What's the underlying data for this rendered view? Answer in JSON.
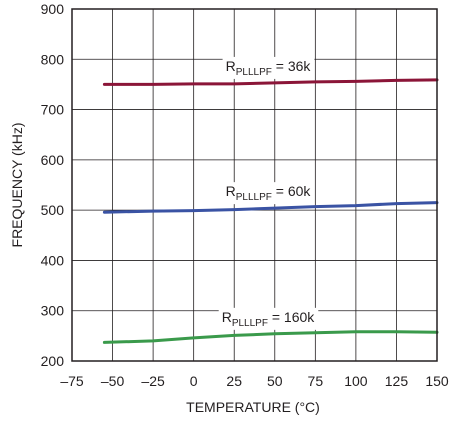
{
  "chart_data": {
    "type": "line",
    "title": "",
    "xlabel": "TEMPERATURE (°C)",
    "ylabel": "FREQUENCY (kHz)",
    "xlim": [
      -75,
      150
    ],
    "ylim": [
      200,
      900
    ],
    "x_ticks": [
      -75,
      -50,
      -25,
      0,
      25,
      50,
      75,
      100,
      125,
      150
    ],
    "y_ticks": [
      200,
      300,
      400,
      500,
      600,
      700,
      800,
      900
    ],
    "x_tick_labels": [
      "–75",
      "–50",
      "–25",
      "0",
      "25",
      "50",
      "75",
      "100",
      "125",
      "150"
    ],
    "y_tick_labels": [
      "200",
      "300",
      "400",
      "500",
      "600",
      "700",
      "800",
      "900"
    ],
    "grid": true,
    "series": [
      {
        "name": "R_PLLLPF = 36k",
        "label_main": "R",
        "label_sub": "PLLLPF",
        "label_rest": " = 36k",
        "color": "#8b1538",
        "x": [
          -55,
          -25,
          0,
          25,
          50,
          75,
          100,
          125,
          150
        ],
        "y": [
          750,
          750,
          751,
          751,
          753,
          755,
          756,
          758,
          759
        ]
      },
      {
        "name": "R_PLLLPF = 60k",
        "label_main": "R",
        "label_sub": "PLLLPF",
        "label_rest": " = 60k",
        "color": "#3a53a4",
        "x": [
          -55,
          -25,
          0,
          25,
          50,
          75,
          100,
          125,
          150
        ],
        "y": [
          496,
          498,
          499,
          501,
          504,
          507,
          509,
          513,
          515
        ]
      },
      {
        "name": "R_PLLLPF = 160k",
        "label_main": "R",
        "label_sub": "PLLLPF",
        "label_rest": " = 160k",
        "color": "#3a9a4b",
        "x": [
          -55,
          -25,
          0,
          25,
          50,
          75,
          100,
          125,
          150
        ],
        "y": [
          237,
          240,
          246,
          251,
          254,
          256,
          258,
          258,
          257
        ]
      }
    ]
  }
}
